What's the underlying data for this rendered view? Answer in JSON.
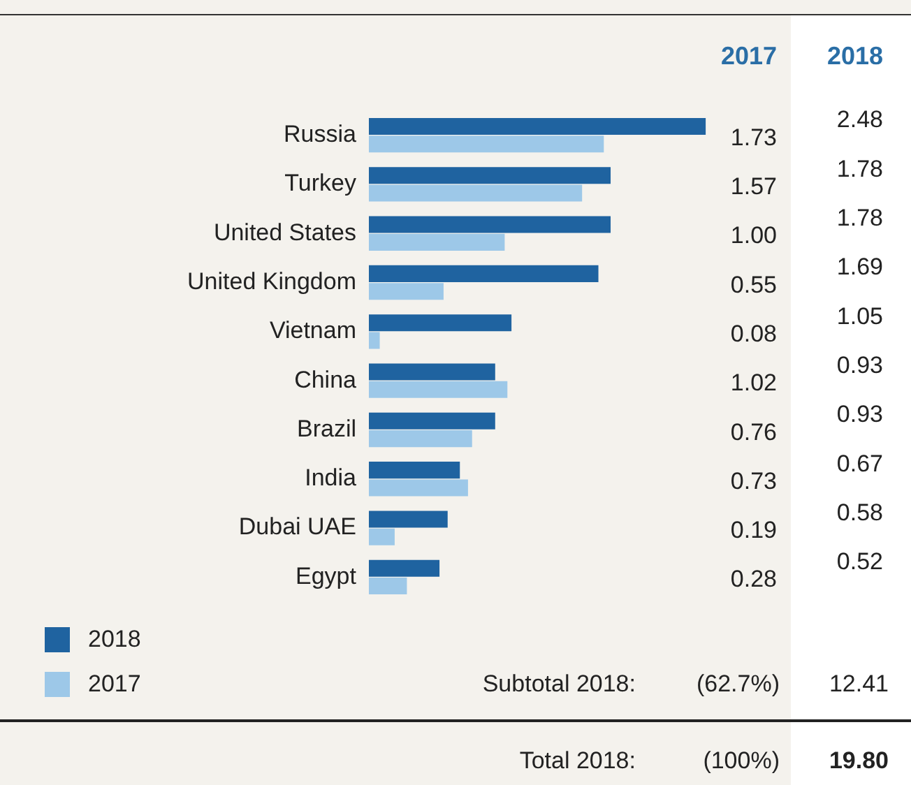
{
  "chart_data": {
    "type": "bar",
    "orientation": "horizontal",
    "categories": [
      "Russia",
      "Turkey",
      "United States",
      "United Kingdom",
      "Vietnam",
      "China",
      "Brazil",
      "India",
      "Dubai UAE",
      "Egypt"
    ],
    "series": [
      {
        "name": "2018",
        "color": "#1f63a0",
        "values": [
          2.48,
          1.78,
          1.78,
          1.69,
          1.05,
          0.93,
          0.93,
          0.67,
          0.58,
          0.52
        ],
        "value_labels": [
          "2.48",
          "1.78",
          "1.78",
          "1.69",
          "1.05",
          "0.93",
          "0.93",
          "0.67",
          "0.58",
          "0.52"
        ]
      },
      {
        "name": "2017",
        "color": "#9dc8e8",
        "values": [
          1.73,
          1.57,
          1.0,
          0.55,
          0.08,
          1.02,
          0.76,
          0.73,
          0.19,
          0.28
        ],
        "value_labels": [
          "1.73",
          "1.57",
          "1.00",
          "0.55",
          "0.08",
          "1.02",
          "0.76",
          "0.73",
          "0.19",
          "0.28"
        ]
      }
    ],
    "tick_labels": "y",
    "legend": "bottom left",
    "annotations": [
      "Subtotal 2018:",
      "(62.7%)",
      "12.41",
      "Total 2018:",
      "(100%)",
      "19.80"
    ]
  }
}
